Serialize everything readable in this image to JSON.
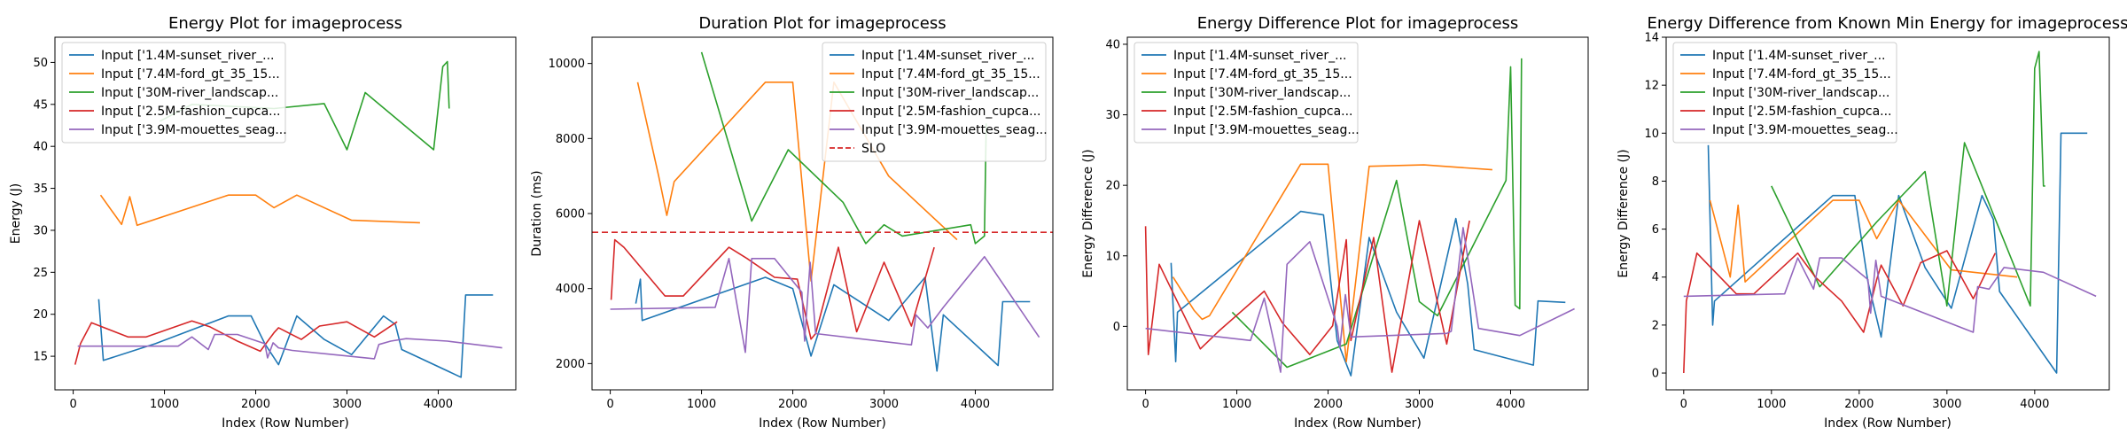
{
  "figure": {
    "series_colors": [
      "#1f77b4",
      "#ff7f0e",
      "#2ca02c",
      "#d62728",
      "#9467bd"
    ],
    "slo_color": "#d62728"
  },
  "chart_data": [
    {
      "type": "line",
      "title": "Energy Plot for imageprocess",
      "xlabel": "Index (Row Number)",
      "ylabel": "Energy (J)",
      "xlim": [
        -200,
        4850
      ],
      "ylim": [
        11,
        53
      ],
      "xticks": [
        0,
        1000,
        2000,
        3000,
        4000
      ],
      "yticks": [
        15,
        20,
        25,
        30,
        35,
        40,
        45,
        50
      ],
      "legend_position": "upper-left",
      "series": [
        {
          "name": "Input ['1.4M-sunset_river_...",
          "x": [
            280,
            330,
            900,
            1700,
            1950,
            2100,
            2250,
            2450,
            2750,
            3050,
            3400,
            3530,
            3600,
            4250,
            4300,
            4600
          ],
          "y": [
            21.8,
            14.5,
            16.5,
            19.8,
            19.8,
            16.5,
            14,
            19.8,
            17,
            15.2,
            19.8,
            18.8,
            15.8,
            12.5,
            22.3,
            22.3
          ]
        },
        {
          "name": "Input ['7.4M-ford_gt_35_15...",
          "x": [
            300,
            530,
            620,
            700,
            1700,
            2000,
            2200,
            2450,
            3050,
            3800
          ],
          "y": [
            34.2,
            30.7,
            34,
            30.6,
            34.2,
            34.2,
            32.7,
            34.2,
            31.2,
            30.9
          ]
        },
        {
          "name": "Input ['30M-river_landscap...",
          "x": [
            950,
            1300,
            2200,
            2750,
            3000,
            3200,
            3950,
            4050,
            4100,
            4120
          ],
          "y": [
            43,
            45,
            44.5,
            45.1,
            39.6,
            46.4,
            39.6,
            49.5,
            50.1,
            44.5
          ]
        },
        {
          "name": "Input ['2.5M-fashion_cupca...",
          "x": [
            20,
            80,
            200,
            600,
            800,
            1300,
            1500,
            1800,
            2050,
            2200,
            2250,
            2500,
            2700,
            3000,
            3300,
            3550
          ],
          "y": [
            14,
            16.5,
            19,
            17.3,
            17.3,
            19.2,
            18.5,
            16.8,
            15.6,
            17.8,
            18.4,
            17,
            18.6,
            19.1,
            17.3,
            19.1
          ]
        },
        {
          "name": "Input ['3.9M-mouettes_seag...",
          "x": [
            50,
            1150,
            1300,
            1480,
            1550,
            1800,
            2100,
            2130,
            2190,
            2250,
            2400,
            3300,
            3350,
            3480,
            3650,
            4100,
            4700
          ],
          "y": [
            16.2,
            16.2,
            17.3,
            15.8,
            17.6,
            17.6,
            16.5,
            14.8,
            16.6,
            16,
            15.7,
            14.7,
            16.4,
            16.8,
            17.1,
            16.8,
            16
          ]
        }
      ]
    },
    {
      "type": "line",
      "title": "Duration Plot for imageprocess",
      "xlabel": "Index (Row Number)",
      "ylabel": "Duration (ms)",
      "xlim": [
        -200,
        4850
      ],
      "ylim": [
        1300,
        10700
      ],
      "xticks": [
        0,
        1000,
        2000,
        3000,
        4000
      ],
      "yticks": [
        2000,
        4000,
        6000,
        8000,
        10000
      ],
      "slo": 5500,
      "slo_label": "SLO",
      "legend_position": "upper-right",
      "series": [
        {
          "name": "Input ['1.4M-sunset_river_...",
          "x": [
            280,
            330,
            350,
            1700,
            2000,
            2200,
            2450,
            3050,
            3450,
            3580,
            3650,
            4250,
            4300,
            4600
          ],
          "y": [
            3600,
            4250,
            3150,
            4300,
            4000,
            2200,
            4100,
            3150,
            4300,
            1800,
            3300,
            1950,
            3650,
            3650
          ]
        },
        {
          "name": "Input ['7.4M-ford_gt_35_15...",
          "x": [
            300,
            530,
            620,
            700,
            1700,
            2000,
            2200,
            2450,
            3050,
            3800
          ],
          "y": [
            9500,
            7000,
            5950,
            6850,
            9500,
            9500,
            4200,
            9500,
            7000,
            5300
          ]
        },
        {
          "name": "Input ['30M-river_landscap...",
          "x": [
            1000,
            1550,
            1950,
            2550,
            2800,
            3000,
            3200,
            3950,
            4000,
            4100,
            4120
          ],
          "y": [
            10300,
            5800,
            7700,
            6300,
            5200,
            5700,
            5400,
            5700,
            5200,
            5400,
            8400
          ]
        },
        {
          "name": "Input ['2.5M-fashion_cupca...",
          "x": [
            10,
            50,
            150,
            600,
            800,
            1300,
            1500,
            1800,
            2050,
            2200,
            2250,
            2500,
            2700,
            3000,
            3300,
            3550
          ],
          "y": [
            3700,
            5300,
            5100,
            3800,
            3800,
            5100,
            4800,
            4300,
            4250,
            2650,
            2800,
            5100,
            2850,
            4700,
            3000,
            5100
          ]
        },
        {
          "name": "Input ['3.9M-mouettes_seag...",
          "x": [
            0,
            1150,
            1300,
            1480,
            1550,
            1800,
            2100,
            2130,
            2190,
            2250,
            3300,
            3350,
            3480,
            3650,
            4100,
            4700
          ],
          "y": [
            3450,
            3500,
            4800,
            2300,
            4800,
            4800,
            3900,
            2600,
            4700,
            2800,
            2500,
            3300,
            2950,
            3500,
            4850,
            2700
          ]
        },
        {
          "name": "SLO",
          "x": [
            -200,
            4850
          ],
          "y": [
            5500,
            5500
          ],
          "dashed": true
        }
      ]
    },
    {
      "type": "line",
      "title": "Energy Difference Plot for imageprocess",
      "xlabel": "Index (Row Number)",
      "ylabel": "Energy Difference (J)",
      "xlim": [
        -200,
        4850
      ],
      "ylim": [
        -9,
        41
      ],
      "xticks": [
        0,
        1000,
        2000,
        3000,
        4000
      ],
      "yticks": [
        0,
        10,
        20,
        30,
        40
      ],
      "legend_position": "upper-left",
      "series": [
        {
          "name": "Input ['1.4M-sunset_river_...",
          "x": [
            280,
            330,
            350,
            1700,
            1950,
            2100,
            2250,
            2450,
            2750,
            3050,
            3400,
            3530,
            3600,
            4250,
            4300,
            4600
          ],
          "y": [
            9,
            -5,
            2,
            16.3,
            15.8,
            -2,
            -7,
            12.6,
            2,
            -4.5,
            15.3,
            6,
            -3.3,
            -5.5,
            3.6,
            3.4
          ]
        },
        {
          "name": "Input ['7.4M-ford_gt_35_15...",
          "x": [
            300,
            530,
            620,
            700,
            1700,
            2000,
            2200,
            2450,
            3050,
            3800
          ],
          "y": [
            7,
            2.3,
            1,
            1.5,
            23,
            23,
            -5,
            22.7,
            22.9,
            22.2
          ]
        },
        {
          "name": "Input ['30M-river_landscap...",
          "x": [
            950,
            1550,
            2200,
            2750,
            3000,
            3200,
            3950,
            4000,
            4050,
            4100,
            4120
          ],
          "y": [
            2,
            -5.8,
            -2.5,
            20.7,
            3.5,
            1.5,
            20.7,
            36.8,
            3,
            2.5,
            38
          ]
        },
        {
          "name": "Input ['2.5M-fashion_cupca...",
          "x": [
            0,
            30,
            150,
            600,
            800,
            1300,
            1500,
            1800,
            2050,
            2200,
            2250,
            2500,
            2700,
            3000,
            3300,
            3550
          ],
          "y": [
            14.2,
            -4,
            8.8,
            -3.2,
            -0.7,
            5,
            0.5,
            -4,
            0.1,
            12.3,
            -2,
            12.6,
            -6.5,
            15,
            -2.5,
            15
          ]
        },
        {
          "name": "Input ['3.9M-mouettes_seag...",
          "x": [
            0,
            1150,
            1300,
            1480,
            1550,
            1800,
            2100,
            2130,
            2190,
            2250,
            3300,
            3350,
            3480,
            3650,
            4100,
            4700
          ],
          "y": [
            -0.3,
            -2,
            4,
            -6.5,
            8.8,
            12,
            0,
            -3,
            4.5,
            -1.5,
            -1,
            -0.7,
            14,
            -0.3,
            -1.3,
            2.5
          ]
        }
      ]
    },
    {
      "type": "line",
      "title": "Energy Difference from Known Min Energy for imageprocess",
      "xlabel": "Index (Row Number)",
      "ylabel": "Energy Difference (J)",
      "xlim": [
        -200,
        4850
      ],
      "ylim": [
        -0.7,
        14
      ],
      "xticks": [
        0,
        1000,
        2000,
        3000,
        4000
      ],
      "yticks": [
        0,
        2,
        4,
        6,
        8,
        10,
        12,
        14
      ],
      "legend_position": "upper-left",
      "series": [
        {
          "name": "Input ['1.4M-sunset_river_...",
          "x": [
            280,
            330,
            350,
            1700,
            1950,
            2100,
            2250,
            2450,
            2750,
            3050,
            3400,
            3530,
            3600,
            4250,
            4300,
            4600
          ],
          "y": [
            9.5,
            2,
            3,
            7.4,
            7.4,
            3.8,
            1.5,
            7.4,
            4.4,
            2.7,
            7.4,
            6.4,
            3.4,
            0,
            10,
            10
          ]
        },
        {
          "name": "Input ['7.4M-ford_gt_35_15...",
          "x": [
            300,
            530,
            620,
            700,
            1700,
            2000,
            2200,
            2450,
            3050,
            3800
          ],
          "y": [
            7.2,
            4,
            7,
            3.8,
            7.2,
            7.2,
            5.6,
            7.2,
            4.3,
            4
          ]
        },
        {
          "name": "Input ['30M-river_landscap...",
          "x": [
            1000,
            1550,
            2200,
            2750,
            3000,
            3200,
            3950,
            4000,
            4050,
            4100,
            4120
          ],
          "y": [
            7.8,
            3.6,
            6.3,
            8.4,
            2.8,
            9.6,
            2.8,
            12.7,
            13.4,
            7.8,
            7.8
          ]
        },
        {
          "name": "Input ['2.5M-fashion_cupca...",
          "x": [
            0,
            30,
            150,
            600,
            800,
            1300,
            1500,
            1800,
            2050,
            2200,
            2250,
            2500,
            2700,
            3000,
            3300,
            3550
          ],
          "y": [
            0,
            3,
            5,
            3.3,
            3.3,
            5,
            4,
            3,
            1.7,
            3.9,
            4.5,
            2.8,
            4.6,
            5.1,
            3.1,
            5
          ]
        },
        {
          "name": "Input ['3.9M-mouettes_seag...",
          "x": [
            0,
            1150,
            1300,
            1480,
            1550,
            1800,
            2100,
            2130,
            2190,
            2250,
            3300,
            3350,
            3480,
            3650,
            4100,
            4700
          ],
          "y": [
            3.2,
            3.3,
            4.8,
            3.5,
            4.8,
            4.8,
            3.9,
            2.5,
            4.7,
            3.2,
            1.7,
            3.6,
            3.5,
            4.4,
            4.2,
            3.2
          ]
        }
      ]
    }
  ]
}
